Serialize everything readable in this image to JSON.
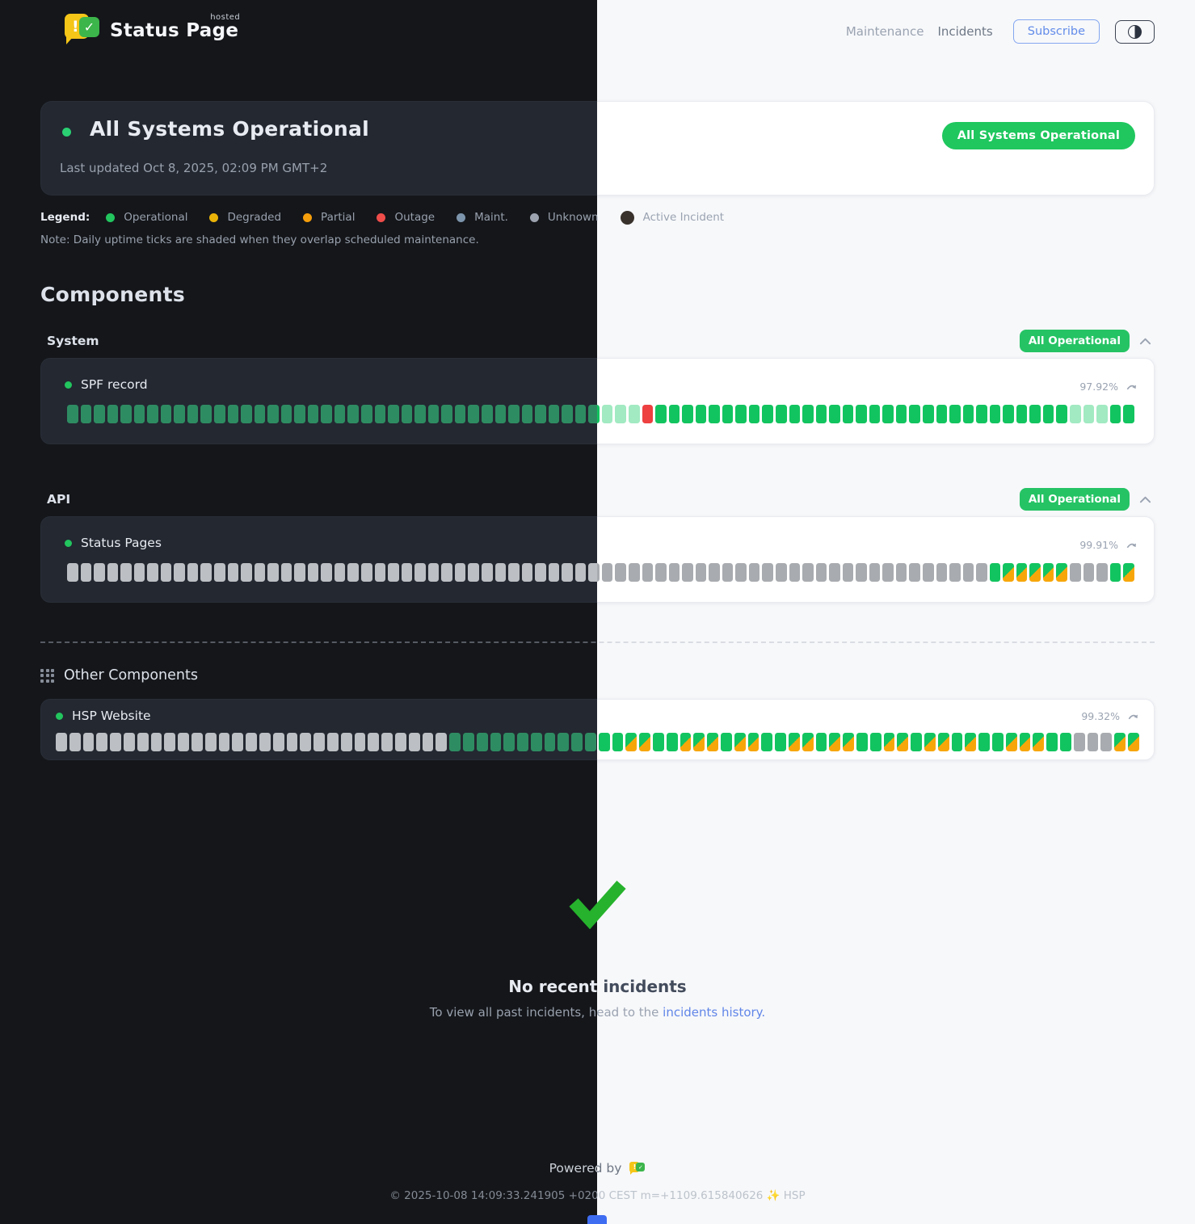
{
  "brand": {
    "name": "Status Page",
    "hosted": "hosted"
  },
  "icons": {
    "logo_exclaim": "!",
    "logo_check": "✓"
  },
  "nav": {
    "maintenance": "Maintenance",
    "incidents": "Incidents",
    "subscribe": "Subscribe"
  },
  "hero": {
    "title": "All Systems Operational",
    "last_updated": "Last updated Oct 8, 2025, 02:09 PM GMT+2",
    "badge": "All Systems Operational"
  },
  "legend": {
    "title": "Legend:",
    "items": [
      {
        "label": "Operational",
        "color": "#22c55e"
      },
      {
        "label": "Degraded",
        "color": "#eab308"
      },
      {
        "label": "Partial",
        "color": "#f59e0b"
      },
      {
        "label": "Outage",
        "color": "#ef4d4a"
      },
      {
        "label": "Maint.",
        "color": "#7d95ac"
      },
      {
        "label": "Unknown",
        "color": "#9ca3af"
      },
      {
        "label": "Active Incident",
        "color": "#39322c",
        "pulse": true
      }
    ],
    "note": "Note: Daily uptime ticks are shaded when they overlap scheduled maintenance."
  },
  "components": {
    "heading": "Components",
    "groups": [
      {
        "label": "System",
        "badge": "All Operational",
        "components": [
          {
            "name": "SPF record",
            "uptime": "97.92%",
            "ticks": [
              {
                "s": "op",
                "n": 40
              },
              {
                "s": "op_faded",
                "n": 3
              },
              {
                "s": "outage",
                "n": 1
              },
              {
                "s": "op",
                "n": 31
              },
              {
                "s": "op_faded",
                "n": 3
              },
              {
                "s": "op",
                "n": 2
              }
            ]
          }
        ]
      },
      {
        "label": "API",
        "badge": "All Operational",
        "components": [
          {
            "name": "Status Pages",
            "uptime": "99.91%",
            "ticks": [
              {
                "s": "unknown",
                "n": 69
              },
              {
                "s": "op",
                "n": 1
              },
              {
                "s": "maint_partial",
                "n": 5
              },
              {
                "s": "unknown",
                "n": 3
              },
              {
                "s": "op",
                "n": 1
              },
              {
                "s": "maint_partial",
                "n": 1
              }
            ]
          }
        ]
      }
    ]
  },
  "other": {
    "heading": "Other Components",
    "components": [
      {
        "name": "HSP Website",
        "uptime": "99.32%",
        "ticks": [
          {
            "s": "unknown",
            "n": 29
          },
          {
            "s": "op",
            "n": 13
          },
          {
            "s": "maint_partial",
            "n": 2
          },
          {
            "s": "op",
            "n": 2
          },
          {
            "s": "maint_partial",
            "n": 3
          },
          {
            "s": "op",
            "n": 1
          },
          {
            "s": "maint_partial",
            "n": 2
          },
          {
            "s": "op",
            "n": 2
          },
          {
            "s": "maint_partial",
            "n": 2
          },
          {
            "s": "op",
            "n": 1
          },
          {
            "s": "maint_partial",
            "n": 2
          },
          {
            "s": "op",
            "n": 2
          },
          {
            "s": "maint_partial",
            "n": 2
          },
          {
            "s": "op",
            "n": 1
          },
          {
            "s": "maint_partial",
            "n": 2
          },
          {
            "s": "op",
            "n": 1
          },
          {
            "s": "maint_partial",
            "n": 1
          },
          {
            "s": "op",
            "n": 2
          },
          {
            "s": "maint_partial",
            "n": 3
          },
          {
            "s": "op",
            "n": 2
          },
          {
            "s": "unknown",
            "n": 3
          },
          {
            "s": "maint_partial",
            "n": 2
          }
        ]
      }
    ]
  },
  "empty": {
    "title": "No recent incidents",
    "sub_prefix": "To view all past incidents, head to the ",
    "link": "incidents history.",
    "check_color": "#26b22c"
  },
  "footer": {
    "powered": "Powered by",
    "copyright": "© 2025-10-08 14:09:33.241905 +0200 CEST m=+1109.615840626 ✨ HSP"
  },
  "theme_colors": {
    "dark": {
      "bg": "#14161a",
      "card": "#232831",
      "card_border": "rgba(255,255,255,0.03)",
      "text": "#e8ebf1",
      "heading": "#dde2ea",
      "muted": "#99a1ad",
      "tick_op": "#2e8c62",
      "tick_op_faded": "#225a42",
      "tick_unknown": "#bcbfc3",
      "tick_outage": "#e8403d",
      "tick_partial": "#f59e0b",
      "divider": "#565b63",
      "powered": "#ccd1d8",
      "copyright": "#858b95",
      "shadow": "none"
    },
    "light": {
      "bg": "#f7f8fa",
      "card": "#ffffff",
      "card_border": "#e9ebf0",
      "text": "#434c5c",
      "heading": "#434c5c",
      "muted": "#9aa3b1",
      "tick_op": "#12c45f",
      "tick_op_faded": "#a2eac2",
      "tick_unknown": "#a8abaf",
      "tick_outage": "#ee4041",
      "tick_partial": "#f7a60a",
      "divider": "#d9dde3",
      "powered": "#6d7683",
      "copyright": "#bcc3cb",
      "shadow": "0 1px 5px rgba(25,35,60,0.08)"
    }
  },
  "accent_colors": {
    "badge_green": "#1fc75e",
    "link_blue": "#6186e8",
    "subscribe_blue": "#628ce9"
  }
}
